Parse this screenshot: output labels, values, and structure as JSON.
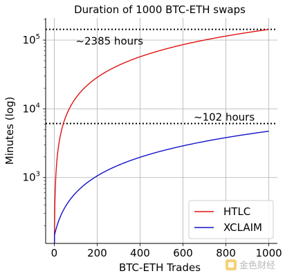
{
  "chart_data": {
    "type": "line",
    "title": "Duration of 1000 BTC-ETH swaps",
    "xlabel": "BTC-ETH Trades",
    "ylabel": "Minutes (log)",
    "yscale": "log",
    "xlim": [
      -40,
      1040
    ],
    "ylim": [
      110,
      210000
    ],
    "xticks": [
      0,
      200,
      400,
      600,
      800,
      1000
    ],
    "yticks": [
      {
        "value": 1000,
        "mantissa": "10",
        "exp": "3"
      },
      {
        "value": 10000,
        "mantissa": "10",
        "exp": "4"
      },
      {
        "value": 100000,
        "mantissa": "10",
        "exp": "5"
      }
    ],
    "grid": true,
    "legend_position": "bottom-right",
    "series": [
      {
        "name": "HTLC",
        "color": "#e01010",
        "x": [
          1,
          10,
          50,
          100,
          200,
          300,
          400,
          500,
          600,
          700,
          800,
          900,
          1000
        ],
        "y": [
          143,
          1431,
          7155,
          14310,
          28620,
          42930,
          57240,
          71550,
          85860,
          100170,
          114480,
          128790,
          143100
        ]
      },
      {
        "name": "XCLAIM",
        "color": "#1010c8",
        "x": [
          1,
          10,
          50,
          100,
          200,
          300,
          400,
          500,
          600,
          700,
          800,
          900,
          1000
        ],
        "y": [
          144,
          185,
          368,
          597,
          1056,
          1515,
          1974,
          2433,
          2892,
          3351,
          3810,
          4269,
          4728
        ]
      }
    ],
    "hlines": [
      {
        "value": 143100,
        "label": "~2385 hours",
        "label_x": 100
      },
      {
        "value": 6120,
        "label": "~102 hours",
        "label_x": 650
      }
    ]
  },
  "watermark": {
    "text": "金色财经"
  }
}
